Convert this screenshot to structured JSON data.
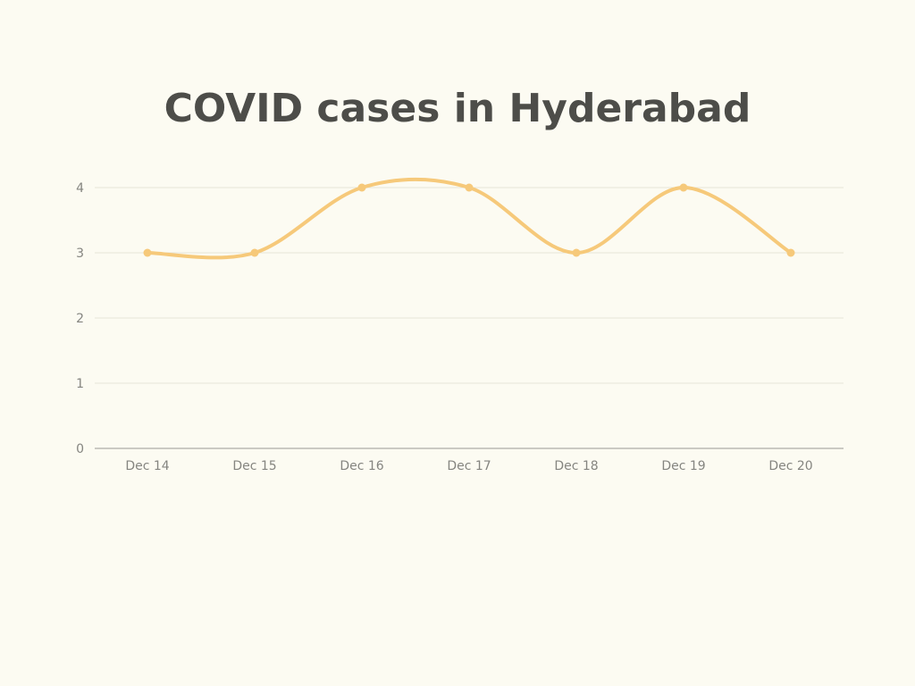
{
  "chart_data": {
    "type": "line",
    "title": "COVID cases in Hyderabad",
    "xlabel": "",
    "ylabel": "",
    "categories": [
      "Dec 14",
      "Dec 15",
      "Dec 16",
      "Dec 17",
      "Dec 18",
      "Dec 19",
      "Dec 20"
    ],
    "series": [
      {
        "values": [
          3,
          3,
          4,
          4,
          3,
          4,
          3
        ],
        "color": "#f6c97a"
      }
    ],
    "ylim": [
      0,
      4
    ],
    "yticks": [
      "0",
      "1",
      "2",
      "3",
      "4"
    ],
    "grid": true,
    "smooth": true,
    "legend": "none"
  }
}
